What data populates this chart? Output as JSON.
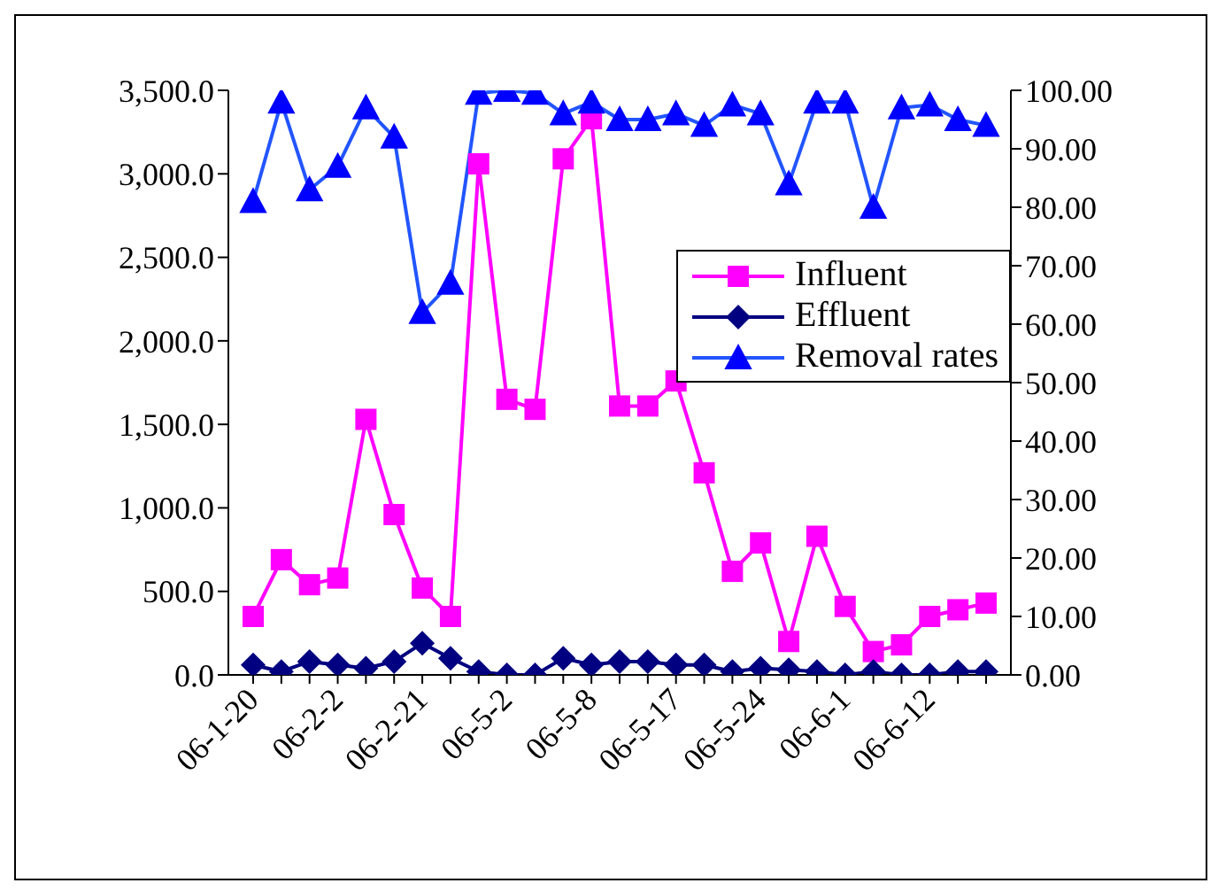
{
  "chart_data": {
    "type": "line",
    "categories": [
      "06-1-20",
      null,
      null,
      "06-2-2",
      null,
      null,
      "06-2-21",
      null,
      null,
      "06-5-2",
      null,
      null,
      "06-5-8",
      null,
      null,
      "06-5-17",
      null,
      null,
      "06-5-24",
      null,
      null,
      "06-6-1",
      null,
      null,
      "06-6-12",
      null,
      null
    ],
    "series": [
      {
        "name": "Influent",
        "color": "#ff00ff",
        "marker": "square",
        "values": [
          350,
          690,
          540,
          580,
          1530,
          960,
          520,
          350,
          3060,
          1650,
          1590,
          3090,
          3330,
          1610,
          1610,
          1760,
          1210,
          620,
          790,
          200,
          830,
          410,
          140,
          180,
          350,
          390,
          430
        ]
      },
      {
        "name": "Effluent",
        "color": "#000080",
        "marker": "diamond",
        "values": [
          60,
          20,
          80,
          60,
          40,
          80,
          190,
          100,
          20,
          0,
          0,
          100,
          60,
          80,
          80,
          60,
          60,
          20,
          40,
          30,
          20,
          0,
          20,
          0,
          0,
          20,
          20
        ]
      },
      {
        "name": "Removal rates",
        "color": "#2255ff",
        "marker": "triangle",
        "axis": "y2",
        "values": [
          81,
          98,
          83,
          87,
          97,
          92,
          62,
          67,
          99.5,
          100,
          99.5,
          96,
          98,
          95,
          95,
          96,
          94,
          97.5,
          96,
          84,
          98,
          98,
          80,
          97,
          97.5,
          95,
          94
        ]
      }
    ],
    "ylim": [
      0,
      3500
    ],
    "yticks": [
      {
        "value": 0,
        "label": "0.0"
      },
      {
        "value": 500,
        "label": "500.0"
      },
      {
        "value": 1000,
        "label": "1,000.0"
      },
      {
        "value": 1500,
        "label": "1,500.0"
      },
      {
        "value": 2000,
        "label": "2,000.0"
      },
      {
        "value": 2500,
        "label": "2,500.0"
      },
      {
        "value": 3000,
        "label": "3,000.0"
      },
      {
        "value": 3500,
        "label": "3,500.0"
      }
    ],
    "y2lim": [
      0,
      100
    ],
    "y2ticks": [
      {
        "value": 0,
        "label": "0.00"
      },
      {
        "value": 10,
        "label": "10.00"
      },
      {
        "value": 20,
        "label": "20.00"
      },
      {
        "value": 30,
        "label": "30.00"
      },
      {
        "value": 40,
        "label": "40.00"
      },
      {
        "value": 50,
        "label": "50.00"
      },
      {
        "value": 60,
        "label": "60.00"
      },
      {
        "value": 70,
        "label": "70.00"
      },
      {
        "value": 80,
        "label": "80.00"
      },
      {
        "value": 90,
        "label": "90.00"
      },
      {
        "value": 100,
        "label": "100.00"
      }
    ],
    "legend": "right",
    "grid": false
  }
}
